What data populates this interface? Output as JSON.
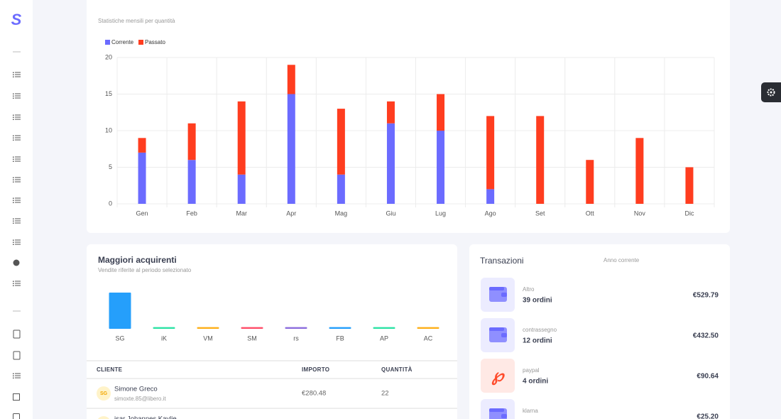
{
  "chart_data": [
    {
      "type": "bar",
      "stacked": true,
      "title": "Statistiche mensili per quantità",
      "categories": [
        "Gen",
        "Feb",
        "Mar",
        "Apr",
        "Mag",
        "Giu",
        "Lug",
        "Ago",
        "Set",
        "Ott",
        "Nov",
        "Dic"
      ],
      "series": [
        {
          "name": "Corrente",
          "color": "#6b6bff",
          "values": [
            7,
            6,
            4,
            15,
            4,
            11,
            10,
            2,
            0,
            0,
            0,
            0
          ]
        },
        {
          "name": "Passato",
          "color": "#ff3d1f",
          "values": [
            2,
            5,
            10,
            4,
            9,
            3,
            5,
            10,
            12,
            6,
            9,
            5
          ]
        }
      ],
      "ylim": [
        0,
        20
      ],
      "yticks": [
        0,
        5,
        10,
        15,
        20
      ],
      "grid": true,
      "legend": "top-left"
    },
    {
      "type": "bar",
      "title": "Maggiori acquirenti",
      "subtitle": "Vendite riferite al periodo selezionato",
      "categories": [
        "SG",
        "iK",
        "VM",
        "SM",
        "rs",
        "FB",
        "AP",
        "AC"
      ],
      "values": [
        22,
        1,
        1,
        1,
        1,
        1,
        1,
        1
      ],
      "colors": [
        "#259ffb",
        "#2de3a5",
        "#feb019",
        "#ff4d68",
        "#8c6ddd",
        "#259ffb",
        "#2de3a5",
        "#feb019"
      ],
      "ylim": [
        0,
        22
      ]
    }
  ],
  "buyers_table": {
    "headers": [
      "CLIENTE",
      "IMPORTO",
      "QUANTITÀ"
    ],
    "rows": [
      {
        "initials": "SG",
        "name": "Simone Greco",
        "email": "simoxte.85@libero.it",
        "amount": "€280.48",
        "quantity": "22"
      },
      {
        "name": "isar Johannes Kaylie"
      }
    ]
  },
  "transactions": {
    "title": "Transazioni",
    "period": "Anno corrente",
    "items": [
      {
        "method": "Altro",
        "orders": "39 ordini",
        "amount": "€529.79",
        "icon": "wallet"
      },
      {
        "method": "contrassegno",
        "orders": "12 ordini",
        "amount": "€432.50",
        "icon": "wallet"
      },
      {
        "method": "paypal",
        "orders": "4 ordini",
        "amount": "€90.64",
        "icon": "paypal"
      },
      {
        "method": "klarna",
        "amount": "€25.20",
        "icon": "wallet"
      }
    ]
  }
}
